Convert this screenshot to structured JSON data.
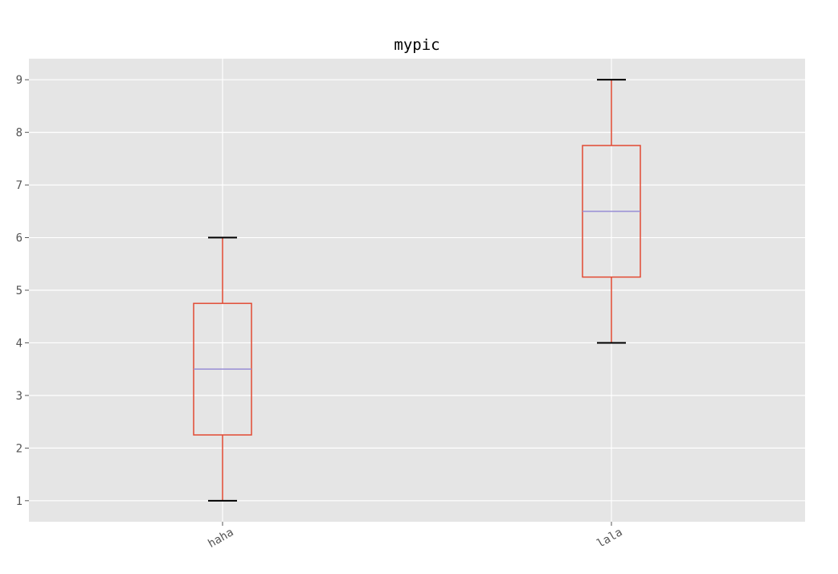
{
  "chart_data": {
    "type": "box",
    "title": "mypic",
    "xlabel": "",
    "ylabel": "",
    "categories": [
      "haha",
      "lala"
    ],
    "boxes": [
      {
        "name": "haha",
        "whisker_low": 1,
        "q1": 2.25,
        "median": 3.5,
        "q3": 4.75,
        "whisker_high": 6
      },
      {
        "name": "lala",
        "whisker_low": 4,
        "q1": 5.25,
        "median": 6.5,
        "q3": 7.75,
        "whisker_high": 9
      }
    ],
    "ylim": [
      0.6,
      9.4
    ],
    "yticks": [
      1,
      2,
      3,
      4,
      5,
      6,
      7,
      8,
      9
    ],
    "grid": true,
    "style": "ggplot",
    "colors": {
      "plot_background": "#e5e5e5",
      "grid": "#ffffff",
      "box": "#e24a33",
      "median": "#8eba42",
      "median_line": "#988ed5",
      "caps": "#000000",
      "tick_text": "#555555",
      "title_text": "#000000"
    }
  }
}
